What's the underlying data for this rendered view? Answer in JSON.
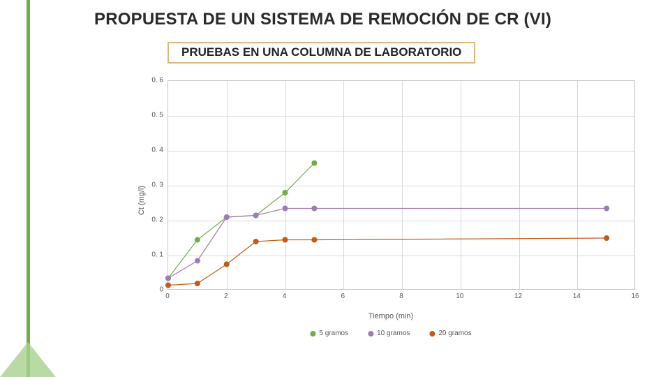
{
  "title": "PROPUESTA DE UN SISTEMA DE REMOCIÓN DE CR (VI)",
  "subtitle": "PRUEBAS EN UNA COLUMNA DE LABORATORIO",
  "accent_color": "#70ad47",
  "chart": {
    "type": "scatter-line",
    "ylabel": "Ct (mg/l)",
    "xlabel": "Tiempo (min)",
    "xlim": [
      0,
      16
    ],
    "ylim": [
      0,
      0.6
    ],
    "xtick_step": 2,
    "ytick_step": 0.1,
    "ytick_labels": [
      "0",
      "0. 1",
      "0. 2",
      "0. 3",
      "0. 4",
      "0. 5",
      "0. 6"
    ],
    "grid_color": "#d9d9d9",
    "border_color": "#c7c7c7",
    "background_color": "#ffffff",
    "label_fontsize": 11,
    "tick_fontsize": 10,
    "marker_size": 4,
    "line_width": 1.2,
    "series": [
      {
        "name": "5 gramos",
        "color": "#70ad47",
        "x": [
          0,
          1,
          2,
          3,
          4,
          5
        ],
        "y": [
          0.035,
          0.145,
          0.21,
          0.215,
          0.28,
          0.365
        ]
      },
      {
        "name": "10 gramos",
        "color": "#9e7bb5",
        "x": [
          0,
          1,
          2,
          3,
          4,
          5,
          15
        ],
        "y": [
          0.035,
          0.085,
          0.21,
          0.215,
          0.235,
          0.235,
          0.235
        ]
      },
      {
        "name": "20 gramos",
        "color": "#c55a11",
        "x": [
          0,
          1,
          2,
          3,
          4,
          5,
          15
        ],
        "y": [
          0.015,
          0.02,
          0.075,
          0.14,
          0.145,
          0.145,
          0.15
        ]
      }
    ]
  }
}
